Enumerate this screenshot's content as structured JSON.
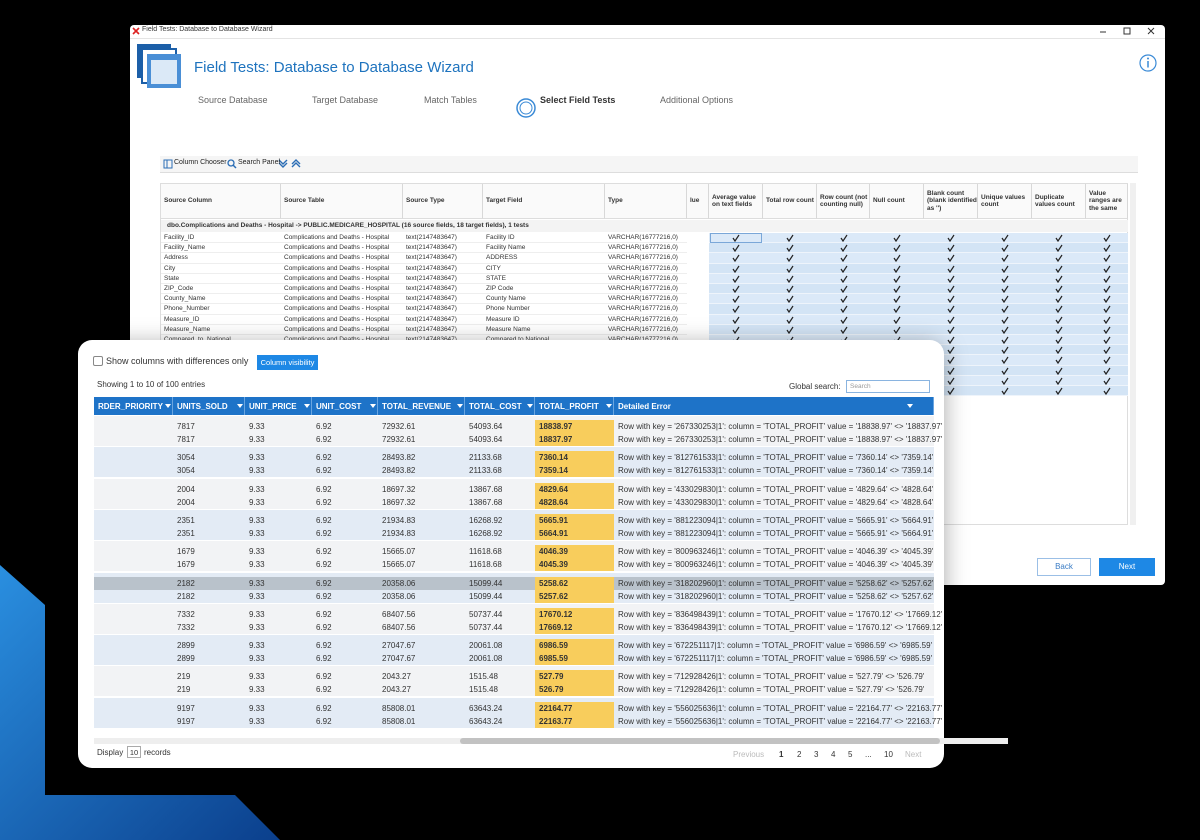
{
  "back_window": {
    "titlebar": "Field Tests: Database to Database Wizard",
    "title": "Field Tests: Database to Database Wizard",
    "steps": [
      "Source Database",
      "Target Database",
      "Match Tables",
      "Select Field Tests",
      "Additional Options"
    ],
    "toolbar": [
      "Column Chooser",
      "Search Panel"
    ],
    "grid": {
      "columns": [
        "Source Column",
        "Source Table",
        "Source Type",
        "Target Field",
        "Type",
        "lue",
        "Average value on text fields",
        "Total row count",
        "Row count (not counting null)",
        "Null count",
        "Blank count (blank identified as '')",
        "Unique values count",
        "Duplicate values count",
        "Value ranges are the same"
      ],
      "group": "dbo.Complications and Deaths - Hospital -> PUBLIC.MEDICARE_HOSPITAL (16 source fields, 18 target fields), 1 tests",
      "rows": [
        [
          "Facility_ID",
          "Complications and Deaths - Hospital",
          "text(2147483647)",
          "Facility ID",
          "VARCHAR(16777216,0)"
        ],
        [
          "Facility_Name",
          "Complications and Deaths - Hospital",
          "text(2147483647)",
          "Facility Name",
          "VARCHAR(16777216,0)"
        ],
        [
          "Address",
          "Complications and Deaths - Hospital",
          "text(2147483647)",
          "ADDRESS",
          "VARCHAR(16777216,0)"
        ],
        [
          "City",
          "Complications and Deaths - Hospital",
          "text(2147483647)",
          "CITY",
          "VARCHAR(16777216,0)"
        ],
        [
          "State",
          "Complications and Deaths - Hospital",
          "text(2147483647)",
          "STATE",
          "VARCHAR(16777216,0)"
        ],
        [
          "ZIP_Code",
          "Complications and Deaths - Hospital",
          "text(2147483647)",
          "ZIP Code",
          "VARCHAR(16777216,0)"
        ],
        [
          "County_Name",
          "Complications and Deaths - Hospital",
          "text(2147483647)",
          "County Name",
          "VARCHAR(16777216,0)"
        ],
        [
          "Phone_Number",
          "Complications and Deaths - Hospital",
          "text(2147483647)",
          "Phone Number",
          "VARCHAR(16777216,0)"
        ],
        [
          "Measure_ID",
          "Complications and Deaths - Hospital",
          "text(2147483647)",
          "Measure ID",
          "VARCHAR(16777216,0)"
        ],
        [
          "Measure_Name",
          "Complications and Deaths - Hospital",
          "text(2147483647)",
          "Measure Name",
          "VARCHAR(16777216,0)"
        ],
        [
          "Compared_to_National",
          "Complications and Deaths - Hospital",
          "text(2147483647)",
          "Compared to National",
          "VARCHAR(16777216,0)"
        ]
      ]
    },
    "buttons": [
      "Back",
      "Next"
    ]
  },
  "results": {
    "filter_label": "Show columns with differences only",
    "column_visibility": "Column visibility",
    "info": "Showing 1 to 10 of 100 entries",
    "search_label": "Global search:",
    "search_placeholder": "Search",
    "columns": [
      "RDER_PRIORITY",
      "UNITS_SOLD",
      "UNIT_PRICE",
      "UNIT_COST",
      "TOTAL_REVENUE",
      "TOTAL_COST",
      "TOTAL_PROFIT",
      "Detailed Error"
    ],
    "groups": [
      [
        [
          "",
          "7817",
          "9.33",
          "6.92",
          "72932.61",
          "54093.64",
          "18838.97",
          "Row with key = '267330253|1': column = 'TOTAL_PROFIT' value = '18838.97' <> '18837.97'"
        ],
        [
          "",
          "7817",
          "9.33",
          "6.92",
          "72932.61",
          "54093.64",
          "18837.97",
          "Row with key = '267330253|1': column = 'TOTAL_PROFIT' value = '18838.97' <> '18837.97'"
        ]
      ],
      [
        [
          "",
          "3054",
          "9.33",
          "6.92",
          "28493.82",
          "21133.68",
          "7360.14",
          "Row with key = '812761533|1': column = 'TOTAL_PROFIT' value = '7360.14' <> '7359.14'"
        ],
        [
          "",
          "3054",
          "9.33",
          "6.92",
          "28493.82",
          "21133.68",
          "7359.14",
          "Row with key = '812761533|1': column = 'TOTAL_PROFIT' value = '7360.14' <> '7359.14'"
        ]
      ],
      [
        [
          "",
          "2004",
          "9.33",
          "6.92",
          "18697.32",
          "13867.68",
          "4829.64",
          "Row with key = '433029830|1': column = 'TOTAL_PROFIT' value = '4829.64' <> '4828.64'"
        ],
        [
          "",
          "2004",
          "9.33",
          "6.92",
          "18697.32",
          "13867.68",
          "4828.64",
          "Row with key = '433029830|1': column = 'TOTAL_PROFIT' value = '4829.64' <> '4828.64'"
        ]
      ],
      [
        [
          "",
          "2351",
          "9.33",
          "6.92",
          "21934.83",
          "16268.92",
          "5665.91",
          "Row with key = '881223094|1': column = 'TOTAL_PROFIT' value = '5665.91' <> '5664.91'"
        ],
        [
          "",
          "2351",
          "9.33",
          "6.92",
          "21934.83",
          "16268.92",
          "5664.91",
          "Row with key = '881223094|1': column = 'TOTAL_PROFIT' value = '5665.91' <> '5664.91'"
        ]
      ],
      [
        [
          "",
          "1679",
          "9.33",
          "6.92",
          "15665.07",
          "11618.68",
          "4046.39",
          "Row with key = '800963246|1': column = 'TOTAL_PROFIT' value = '4046.39' <> '4045.39'"
        ],
        [
          "",
          "1679",
          "9.33",
          "6.92",
          "15665.07",
          "11618.68",
          "4045.39",
          "Row with key = '800963246|1': column = 'TOTAL_PROFIT' value = '4046.39' <> '4045.39'"
        ]
      ],
      [
        [
          "",
          "2182",
          "9.33",
          "6.92",
          "20358.06",
          "15099.44",
          "5258.62",
          "Row with key = '318202960|1': column = 'TOTAL_PROFIT' value = '5258.62' <> '5257.62'"
        ],
        [
          "",
          "2182",
          "9.33",
          "6.92",
          "20358.06",
          "15099.44",
          "5257.62",
          "Row with key = '318202960|1': column = 'TOTAL_PROFIT' value = '5258.62' <> '5257.62'"
        ]
      ],
      [
        [
          "",
          "7332",
          "9.33",
          "6.92",
          "68407.56",
          "50737.44",
          "17670.12",
          "Row with key = '836498439|1': column = 'TOTAL_PROFIT' value = '17670.12' <> '17669.12'"
        ],
        [
          "",
          "7332",
          "9.33",
          "6.92",
          "68407.56",
          "50737.44",
          "17669.12",
          "Row with key = '836498439|1': column = 'TOTAL_PROFIT' value = '17670.12' <> '17669.12'"
        ]
      ],
      [
        [
          "",
          "2899",
          "9.33",
          "6.92",
          "27047.67",
          "20061.08",
          "6986.59",
          "Row with key = '672251117|1': column = 'TOTAL_PROFIT' value = '6986.59' <> '6985.59'"
        ],
        [
          "",
          "2899",
          "9.33",
          "6.92",
          "27047.67",
          "20061.08",
          "6985.59",
          "Row with key = '672251117|1': column = 'TOTAL_PROFIT' value = '6986.59' <> '6985.59'"
        ]
      ],
      [
        [
          "",
          "219",
          "9.33",
          "6.92",
          "2043.27",
          "1515.48",
          "527.79",
          "Row with key = '712928426|1': column = 'TOTAL_PROFIT' value = '527.79' <> '526.79'"
        ],
        [
          "",
          "219",
          "9.33",
          "6.92",
          "2043.27",
          "1515.48",
          "526.79",
          "Row with key = '712928426|1': column = 'TOTAL_PROFIT' value = '527.79' <> '526.79'"
        ]
      ],
      [
        [
          "",
          "9197",
          "9.33",
          "6.92",
          "85808.01",
          "63643.24",
          "22164.77",
          "Row with key = '556025636|1': column = 'TOTAL_PROFIT' value = '22164.77' <> '22163.77'"
        ],
        [
          "",
          "9197",
          "9.33",
          "6.92",
          "85808.01",
          "63643.24",
          "22163.77",
          "Row with key = '556025636|1': column = 'TOTAL_PROFIT' value = '22164.77' <> '22163.77'"
        ]
      ]
    ],
    "display": "Display",
    "page_size": "10",
    "records": "records",
    "pagination": [
      "Previous",
      "1",
      "2",
      "3",
      "4",
      "5",
      "...",
      "10",
      "Next"
    ]
  }
}
